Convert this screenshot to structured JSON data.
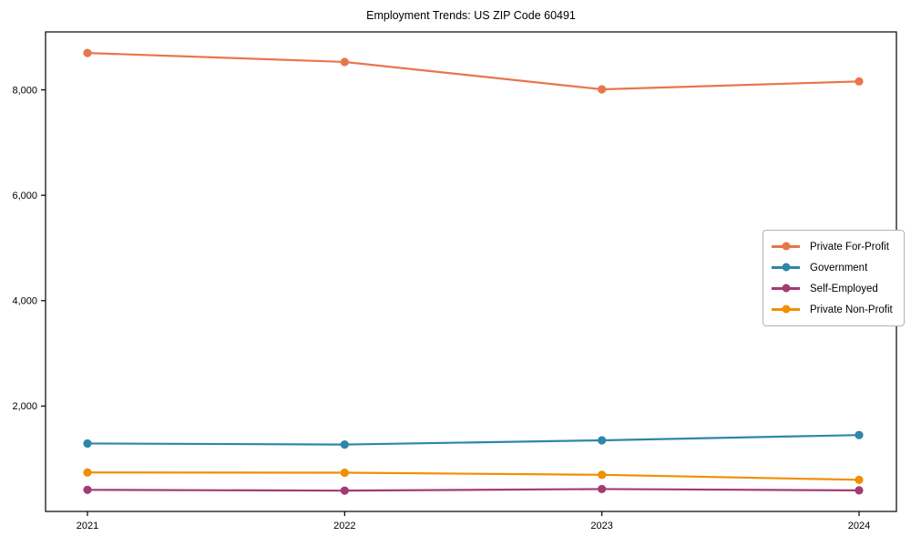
{
  "chart_data": {
    "type": "line",
    "title": "Employment Trends: US ZIP Code 60491",
    "categories": [
      "2021",
      "2022",
      "2023",
      "2024"
    ],
    "series": [
      {
        "name": "Private For-Profit",
        "color": "#E8764C",
        "values": [
          8700,
          8530,
          8010,
          8160
        ]
      },
      {
        "name": "Government",
        "color": "#2E86AB",
        "values": [
          1290,
          1270,
          1350,
          1450
        ]
      },
      {
        "name": "Self-Employed",
        "color": "#A23B72",
        "values": [
          410,
          395,
          425,
          400
        ]
      },
      {
        "name": "Private Non-Profit",
        "color": "#F18F01",
        "values": [
          740,
          735,
          695,
          600
        ]
      }
    ],
    "xlabel": "",
    "ylabel": "",
    "ylim": [
      0,
      9100
    ],
    "yticks": [
      2000,
      4000,
      6000,
      8000
    ],
    "grid": false,
    "legend_position": "center-right",
    "marker": "circle",
    "axis_color": "#000000",
    "background_color": "#ffffff"
  }
}
